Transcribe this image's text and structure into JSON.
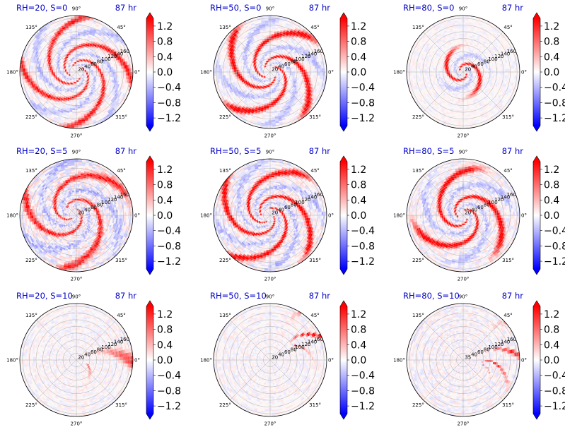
{
  "figure": {
    "colormap": "bwr",
    "colormap_colors": {
      "low": "#0000ff",
      "mid": "#ffffff",
      "high": "#ff0000"
    },
    "title_color": "#0000cc",
    "grid_color": "#b0b0b0"
  },
  "chart_data": [
    {
      "type": "heatmap",
      "projection": "polar",
      "title": "RH=20, S=0",
      "time_label": "87 hr",
      "rh": 20,
      "s": 0,
      "angular_labels": [
        "90°",
        "45°",
        "0°",
        "315°",
        "270°",
        "225°",
        "180°",
        "135°"
      ],
      "radial_ticks": [
        "20",
        "40",
        "60",
        "80",
        "100",
        "120",
        "140",
        "160"
      ],
      "colorbar": {
        "ticks": [
          "1.2",
          "0.8",
          "0.4",
          "0.0",
          "−0.4",
          "−0.8",
          "−1.2"
        ],
        "extend": "both",
        "range": [
          -1.4,
          1.4
        ]
      },
      "pattern": {
        "kind": "spiral",
        "arms": 4,
        "twist": 2.3,
        "strength": 0.85,
        "inner": 0.12,
        "outer": 0.95,
        "cx": 0.0,
        "cy": 0.0,
        "rot": 0.0,
        "noise": 0.35
      }
    },
    {
      "type": "heatmap",
      "projection": "polar",
      "title": "RH=50, S=0",
      "time_label": "87 hr",
      "rh": 50,
      "s": 0,
      "angular_labels": [
        "90°",
        "45°",
        "0°",
        "315°",
        "270°",
        "225°",
        "180°",
        "135°"
      ],
      "radial_ticks": [
        "20",
        "40",
        "60",
        "80",
        "100",
        "120",
        "140",
        "160"
      ],
      "colorbar": {
        "ticks": [
          "1.2",
          "0.8",
          "0.4",
          "0.0",
          "−0.4",
          "−0.8",
          "−1.2"
        ],
        "extend": "both",
        "range": [
          -1.4,
          1.4
        ]
      },
      "pattern": {
        "kind": "spiral",
        "arms": 4,
        "twist": 2.0,
        "strength": 1.0,
        "inner": 0.12,
        "outer": 0.9,
        "cx": 0.0,
        "cy": 0.0,
        "rot": 0.8,
        "noise": 0.3
      }
    },
    {
      "type": "heatmap",
      "projection": "polar",
      "title": "RH=80, S=0",
      "time_label": "87 hr",
      "rh": 80,
      "s": 0,
      "angular_labels": [
        "90°",
        "45°",
        "0°",
        "315°",
        "270°",
        "225°",
        "180°",
        "135°"
      ],
      "radial_ticks": [
        "20",
        "40",
        "60",
        "80",
        "100",
        "120",
        "140",
        "160"
      ],
      "colorbar": {
        "ticks": [
          "1.2",
          "0.8",
          "0.4",
          "0.0",
          "−0.4",
          "−0.8",
          "−1.2"
        ],
        "extend": "both",
        "range": [
          -1.4,
          1.4
        ]
      },
      "pattern": {
        "kind": "core",
        "arms": 2,
        "twist": 3.0,
        "strength": 1.0,
        "inner": 0.05,
        "outer": 0.35,
        "cx": 0.0,
        "cy": 0.0,
        "rot": 0.0,
        "noise": 0.25
      }
    },
    {
      "type": "heatmap",
      "projection": "polar",
      "title": "RH=20, S=5",
      "time_label": "87 hr",
      "rh": 20,
      "s": 5,
      "angular_labels": [
        "90°",
        "45°",
        "0°",
        "315°",
        "270°",
        "225°",
        "180°",
        "135°"
      ],
      "radial_ticks": [
        "20",
        "40",
        "60",
        "80",
        "100",
        "120",
        "140",
        "160"
      ],
      "colorbar": {
        "ticks": [
          "1.2",
          "0.8",
          "0.4",
          "0.0",
          "−0.4",
          "−0.8",
          "−1.2"
        ],
        "extend": "both",
        "range": [
          -1.4,
          1.4
        ]
      },
      "pattern": {
        "kind": "spiral",
        "arms": 3,
        "twist": 2.4,
        "strength": 0.8,
        "inner": 0.1,
        "outer": 0.95,
        "cx": -0.08,
        "cy": 0.05,
        "rot": 1.5,
        "noise": 0.55
      }
    },
    {
      "type": "heatmap",
      "projection": "polar",
      "title": "RH=50, S=5",
      "time_label": "87 hr",
      "rh": 50,
      "s": 5,
      "angular_labels": [
        "90°",
        "45°",
        "0°",
        "315°",
        "270°",
        "225°",
        "180°",
        "135°"
      ],
      "radial_ticks": [
        "20",
        "40",
        "60",
        "80",
        "100",
        "120",
        "140",
        "160"
      ],
      "colorbar": {
        "ticks": [
          "1.2",
          "0.8",
          "0.4",
          "0.0",
          "−0.4",
          "−0.8",
          "−1.2"
        ],
        "extend": "both",
        "range": [
          -1.4,
          1.4
        ]
      },
      "pattern": {
        "kind": "spiral",
        "arms": 4,
        "twist": 2.2,
        "strength": 1.0,
        "inner": 0.1,
        "outer": 0.92,
        "cx": -0.05,
        "cy": 0.0,
        "rot": 2.2,
        "noise": 0.45
      }
    },
    {
      "type": "heatmap",
      "projection": "polar",
      "title": "RH=80, S=5",
      "time_label": "87 hr",
      "rh": 80,
      "s": 5,
      "angular_labels": [
        "90°",
        "45°",
        "0°",
        "315°",
        "270°",
        "225°",
        "180°",
        "135°"
      ],
      "radial_ticks": [
        "20",
        "40",
        "60",
        "80",
        "100",
        "120",
        "140",
        "160"
      ],
      "colorbar": {
        "ticks": [
          "1.2",
          "0.8",
          "0.4",
          "0.0",
          "−0.4",
          "−0.8",
          "−1.2"
        ],
        "extend": "both",
        "range": [
          -1.4,
          1.4
        ]
      },
      "pattern": {
        "kind": "spiral",
        "arms": 3,
        "twist": 2.5,
        "strength": 1.0,
        "inner": 0.08,
        "outer": 0.8,
        "cx": 0.0,
        "cy": 0.0,
        "rot": 3.0,
        "noise": 0.4
      }
    },
    {
      "type": "heatmap",
      "projection": "polar",
      "title": "RH=20, S=10",
      "time_label": "87 hr",
      "rh": 20,
      "s": 10,
      "angular_labels": [
        "90°",
        "45°",
        "0°",
        "315°",
        "270°",
        "225°",
        "180°",
        "135°"
      ],
      "radial_ticks": [
        "20",
        "40",
        "60",
        "80",
        "100",
        "120",
        "140",
        "160"
      ],
      "colorbar": {
        "ticks": [
          "1.2",
          "0.8",
          "0.4",
          "0.0",
          "−0.4",
          "−0.8",
          "−1.2"
        ],
        "extend": "both",
        "range": [
          -1.4,
          1.4
        ]
      },
      "pattern": {
        "kind": "sheared",
        "arms": 1,
        "twist": 0.8,
        "strength": 1.0,
        "inner": 0.05,
        "outer": 0.9,
        "cx": 0.15,
        "cy": -0.05,
        "rot": -0.3,
        "noise": 0.3
      }
    },
    {
      "type": "heatmap",
      "projection": "polar",
      "title": "RH=50, S=10",
      "time_label": "87 hr",
      "rh": 50,
      "s": 10,
      "angular_labels": [
        "90°",
        "45°",
        "0°",
        "315°",
        "270°",
        "225°",
        "180°",
        "135°"
      ],
      "radial_ticks": [
        "20",
        "40",
        "60",
        "80",
        "100",
        "120",
        "140",
        "160"
      ],
      "colorbar": {
        "ticks": [
          "1.2",
          "0.8",
          "0.4",
          "0.0",
          "−0.4",
          "−0.8",
          "−1.2"
        ],
        "extend": "both",
        "range": [
          -1.4,
          1.4
        ]
      },
      "pattern": {
        "kind": "sheared",
        "arms": 2,
        "twist": 1.0,
        "strength": 1.0,
        "inner": 0.15,
        "outer": 0.95,
        "cx": 0.35,
        "cy": 0.2,
        "rot": 0.6,
        "noise": 0.3
      }
    },
    {
      "type": "heatmap",
      "projection": "polar",
      "title": "RH=80, S=10",
      "time_label": "87 hr",
      "rh": 80,
      "s": 10,
      "angular_labels": [
        "90°",
        "45°",
        "0°",
        "315°",
        "270°",
        "225°",
        "180°",
        "135°"
      ],
      "radial_ticks": [
        "35",
        "40",
        "60",
        "80",
        "100",
        "120",
        "140",
        "160"
      ],
      "colorbar": {
        "ticks": [
          "1.2",
          "0.8",
          "0.4",
          "0.0",
          "−0.4",
          "−0.8",
          "−1.2"
        ],
        "extend": "both",
        "range": [
          -1.4,
          1.4
        ]
      },
      "pattern": {
        "kind": "sheared",
        "arms": 2,
        "twist": 1.2,
        "strength": 0.9,
        "inner": 0.15,
        "outer": 0.95,
        "cx": 0.3,
        "cy": -0.1,
        "rot": 0.2,
        "noise": 0.35
      }
    }
  ]
}
